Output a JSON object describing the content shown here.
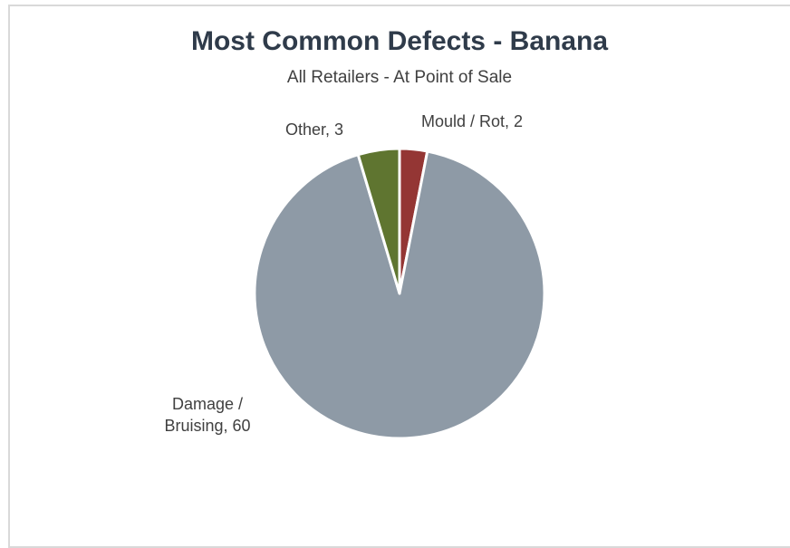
{
  "chart_data": {
    "type": "pie",
    "title": "Most Common Defects - Banana",
    "subtitle": "All Retailers - At Point of Sale",
    "slices": [
      {
        "label": "Mould / Rot",
        "value": 2,
        "color": "#943634",
        "label_lines": [
          "Mould / Rot, 2"
        ]
      },
      {
        "label": "Damage / Bruising",
        "value": 60,
        "color": "#8e9aa6",
        "label_lines": [
          "Damage /",
          "Bruising, 60"
        ]
      },
      {
        "label": "Other",
        "value": 3,
        "color": "#5f7530",
        "label_lines": [
          "Other, 3"
        ]
      }
    ],
    "start_angle_deg": 0,
    "direction": "clockwise",
    "legend": "none",
    "labels": "outside"
  }
}
